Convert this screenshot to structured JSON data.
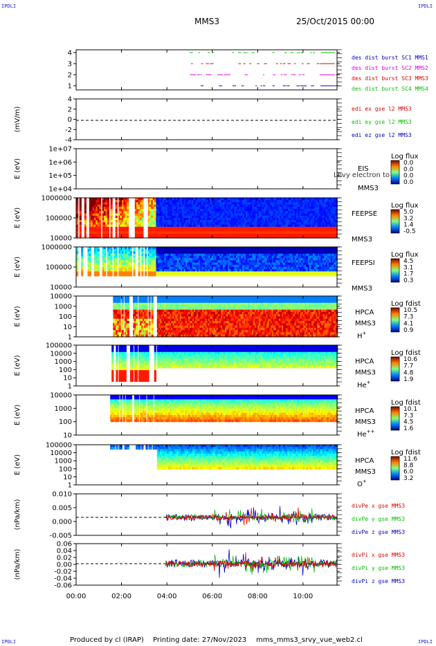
{
  "header": {
    "corner_label": "IPDLI",
    "spacecraft": "MMS3",
    "date": "25/Oct/2015 00:00"
  },
  "footer": {
    "produced_by": "Produced by cl (IRAP)",
    "printing_date": "Printing date: 27/Nov/2023",
    "filename": "mms_mms3_srvy_vue_web2.cl"
  },
  "colors": {
    "red": "#e00000",
    "green": "#00c000",
    "blue": "#0000c0",
    "magenta": "#e000e0"
  },
  "time_axis": {
    "ticks": [
      "00:00",
      "02:00",
      "04:00",
      "06:00",
      "08:00",
      "10:00"
    ],
    "range_hours": [
      0,
      11.5
    ]
  },
  "chart_data": [
    {
      "type": "line",
      "name": "burst",
      "yticks": [
        "4",
        "3",
        "2",
        "1"
      ],
      "legend": [
        {
          "text": "des dist burst SC1 MMS1",
          "color": "#0000c0"
        },
        {
          "text": "des dist burst SC2 MMS2",
          "color": "#e000e0"
        },
        {
          "text": "des dist burst SC3 MMS3",
          "color": "#e00000"
        },
        {
          "text": "des dist burst SC4 MMS4",
          "color": "#00c000"
        }
      ]
    },
    {
      "type": "line",
      "name": "edi",
      "ylabel": "(mV/m)",
      "yticks": [
        "4",
        "2",
        "0",
        "-2",
        "-4"
      ],
      "legend": [
        {
          "text": "edi ex gse l2 MMS3",
          "color": "#e00000"
        },
        {
          "text": "edi ey gse l2 MMS3",
          "color": "#00c000"
        },
        {
          "text": "edi ez gse l2 MMS3",
          "color": "#0000c0"
        }
      ]
    },
    {
      "type": "heatmap",
      "name": "eis",
      "ylabel": "E (eV)",
      "yticks": [
        "1e+07",
        "1e+06",
        "1e+05",
        "1e+04"
      ],
      "labels": [
        "EIS",
        "MMS3"
      ],
      "overlay": "Lbvy electron to",
      "cbar_title": "Log flux",
      "cbar_ticks": [
        "0.0",
        "0.0",
        "0.0",
        "0.0"
      ]
    },
    {
      "type": "heatmap",
      "name": "feepse",
      "ylabel": "E (eV)",
      "yticks": [
        "1000000",
        "100000",
        "10000"
      ],
      "labels": [
        "FEEPSE",
        "MMS3"
      ],
      "cbar_title": "Log flux",
      "cbar_ticks": [
        "5.0",
        "3.2",
        "1.4",
        "-0.5"
      ]
    },
    {
      "type": "heatmap",
      "name": "feepsi",
      "ylabel": "E (eV)",
      "yticks": [
        "1000000",
        "100000",
        "10000"
      ],
      "labels": [
        "FEEPSI",
        "MMS3"
      ],
      "cbar_title": "Log flux",
      "cbar_ticks": [
        "4.5",
        "3.1",
        "1.7",
        "0.3"
      ]
    },
    {
      "type": "heatmap",
      "name": "hpca-h",
      "ylabel": "E (eV)",
      "yticks": [
        "10000",
        "1000",
        "100",
        "10",
        "1"
      ],
      "labels": [
        "HPCA",
        "MMS3"
      ],
      "species": "H",
      "sup": "+",
      "cbar_title": "Log fdist",
      "cbar_ticks": [
        "10.5",
        "7.3",
        "4.1",
        "0.9"
      ]
    },
    {
      "type": "heatmap",
      "name": "hpca-he",
      "ylabel": "E (eV)",
      "yticks": [
        "100000",
        "10000",
        "1000",
        "100",
        "10",
        "1"
      ],
      "labels": [
        "HPCA",
        "MMS3"
      ],
      "species": "He",
      "sup": "+",
      "cbar_title": "Log fdist",
      "cbar_ticks": [
        "10.6",
        "7.7",
        "4.8",
        "1.9"
      ]
    },
    {
      "type": "heatmap",
      "name": "hpca-he2",
      "ylabel": "E (eV)",
      "yticks": [
        "10000",
        "1000",
        "100",
        "10"
      ],
      "labels": [
        "HPCA",
        "MMS3"
      ],
      "species": "He",
      "sup": "++",
      "cbar_title": "Log fdist",
      "cbar_ticks": [
        "10.1",
        "7.3",
        "4.5",
        "1.6"
      ]
    },
    {
      "type": "heatmap",
      "name": "hpca-o",
      "ylabel": "E (eV)",
      "yticks": [
        "100000",
        "10000",
        "1000",
        "100",
        "10",
        "1"
      ],
      "labels": [
        "HPCA",
        "MMS3"
      ],
      "species": "O",
      "sup": "+",
      "cbar_title": "Log fdist",
      "cbar_ticks": [
        "11.6",
        "8.8",
        "6.0",
        "3.2"
      ]
    },
    {
      "type": "line",
      "name": "divpe",
      "ylabel": "(nPa/km)",
      "yticks": [
        "0.010",
        "0.005",
        "0.000",
        "-0.005"
      ],
      "legend": [
        {
          "text": "divPe x gse MMS3",
          "color": "#e00000"
        },
        {
          "text": "divPe y gse MMS3",
          "color": "#00c000"
        },
        {
          "text": "divPe z gse MMS3",
          "color": "#0000c0"
        }
      ]
    },
    {
      "type": "line",
      "name": "divpi",
      "ylabel": "(nPa/km)",
      "yticks": [
        "0.06",
        "0.04",
        "0.02",
        "0.00",
        "-0.02",
        "-0.04",
        "-0.06"
      ],
      "legend": [
        {
          "text": "divPi x gse MMS3",
          "color": "#e00000"
        },
        {
          "text": "divPi y gse MMS3",
          "color": "#00c000"
        },
        {
          "text": "divPi z gse MMS3",
          "color": "#0000c0"
        }
      ]
    }
  ]
}
